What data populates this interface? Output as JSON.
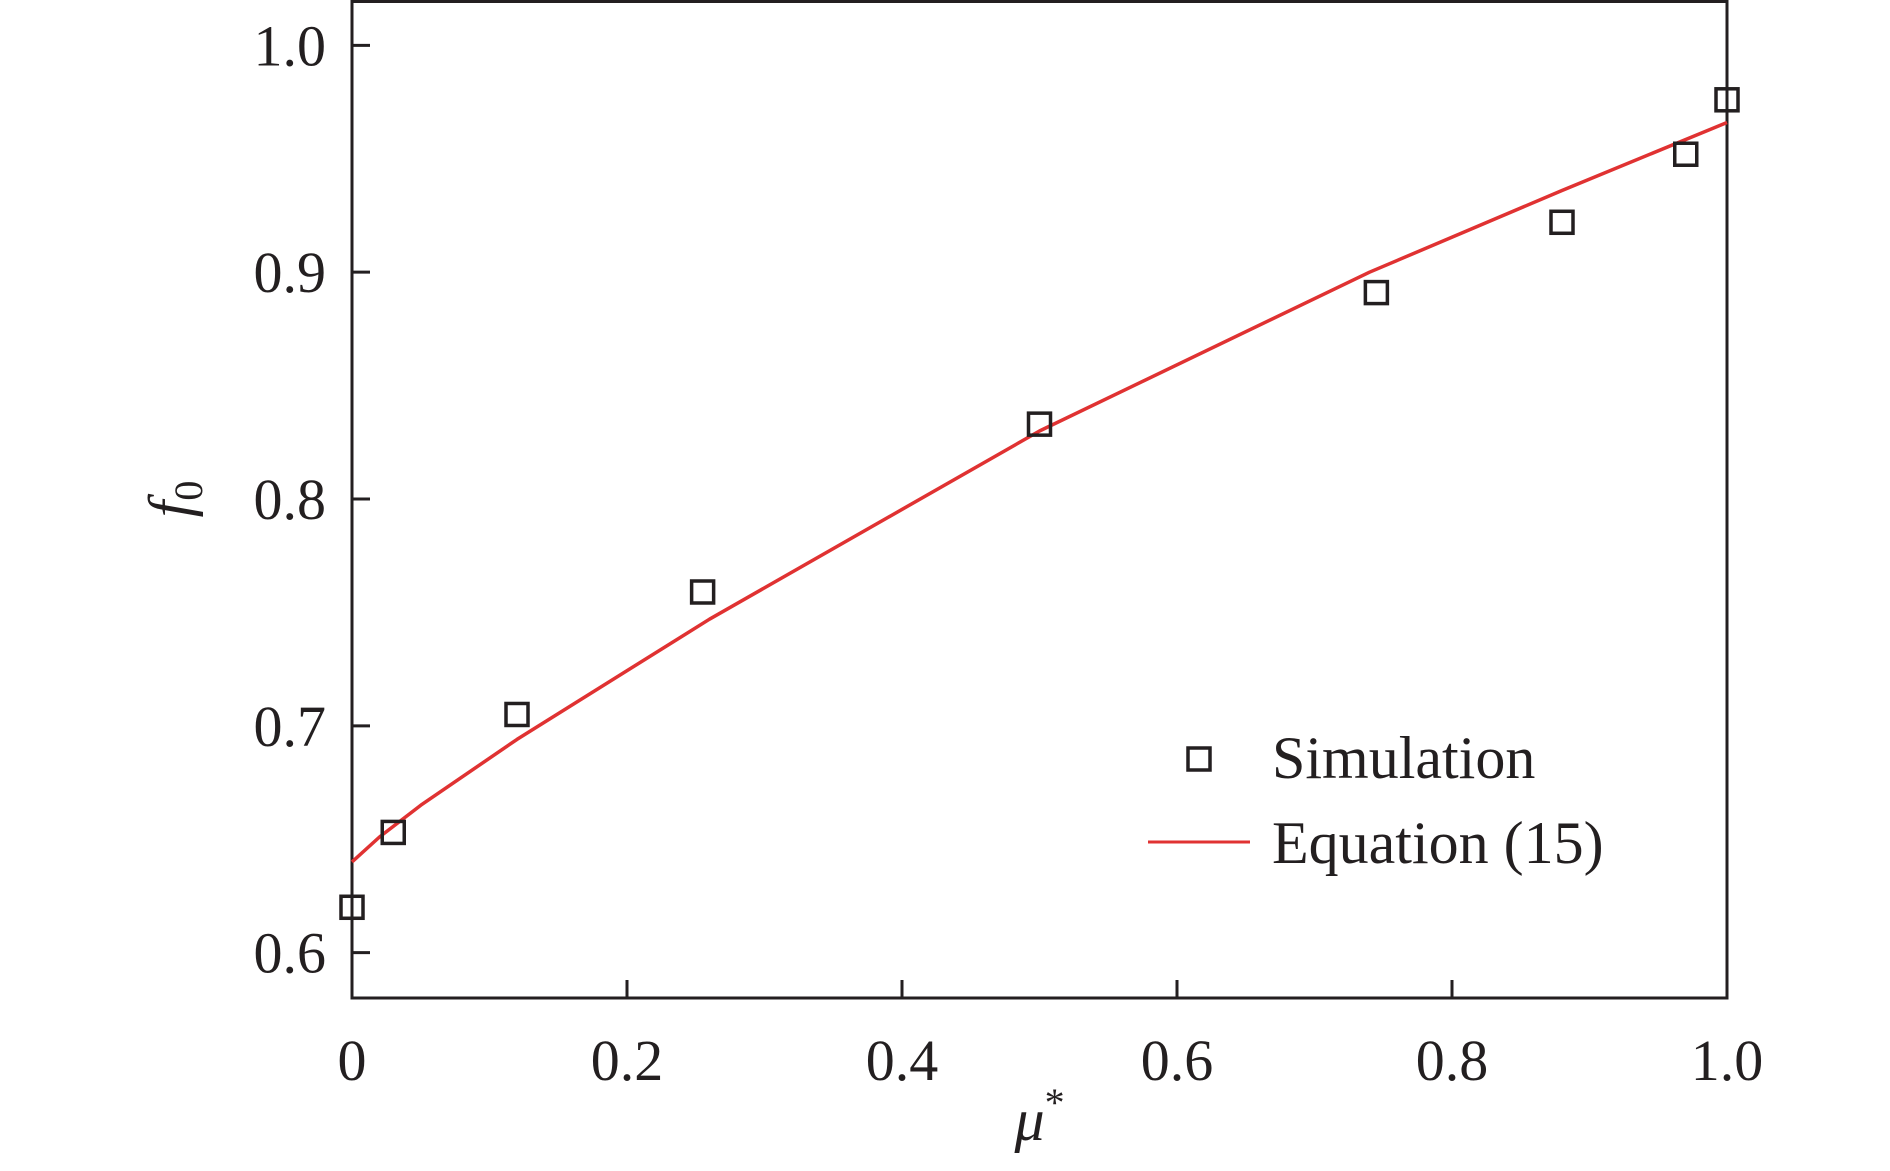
{
  "chart_data": {
    "type": "scatter",
    "xlabel": {
      "symbol": "μ",
      "sup": "*"
    },
    "ylabel": {
      "symbol": "f",
      "sub": "0"
    },
    "xlim": [
      0,
      1.0
    ],
    "ylim": [
      0.58,
      1.02
    ],
    "x_ticks": [
      0,
      0.2,
      0.4,
      0.6,
      0.8,
      1.0
    ],
    "x_tick_labels": [
      "0",
      "0.2",
      "0.4",
      "0.6",
      "0.8",
      "1.0"
    ],
    "y_ticks": [
      0.6,
      0.7,
      0.8,
      0.9,
      1.0
    ],
    "y_tick_labels": [
      "0.6",
      "0.7",
      "0.8",
      "0.9",
      "1.0"
    ],
    "grid": false,
    "legend_position": "bottom-right",
    "series": [
      {
        "name": "Simulation",
        "kind": "markers",
        "marker": "open-square",
        "color": "#231f20",
        "x": [
          0.0,
          0.03,
          0.12,
          0.255,
          0.5,
          0.745,
          0.88,
          0.97,
          1.0
        ],
        "y": [
          0.62,
          0.653,
          0.705,
          0.759,
          0.833,
          0.891,
          0.922,
          0.952,
          0.976
        ]
      },
      {
        "name": "Equation (15)",
        "kind": "line",
        "color": "#e03232",
        "x": [
          0.0,
          0.02,
          0.05,
          0.12,
          0.26,
          0.5,
          0.74,
          0.88,
          1.0
        ],
        "y": [
          0.64,
          0.651,
          0.665,
          0.694,
          0.747,
          0.83,
          0.9,
          0.936,
          0.966
        ]
      }
    ]
  }
}
